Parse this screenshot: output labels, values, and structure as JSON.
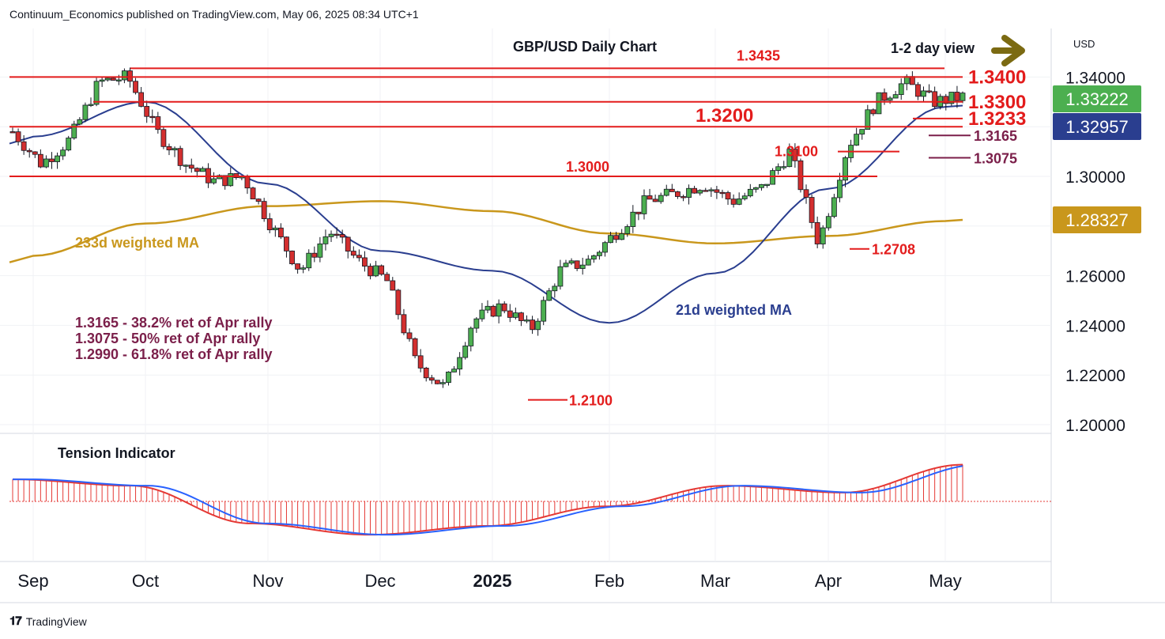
{
  "header": {
    "publisher": "Continuum_Economics published on TradingView.com, May 06, 2025 08:34 UTC+1"
  },
  "footer": {
    "brand": "TradingView",
    "logo_icon": "tradingview-logo-icon"
  },
  "chart_data": [
    {
      "type": "candlestick",
      "title": "GBP/USD Daily Chart",
      "subtitle": "1-2 day view",
      "currency": "USD",
      "x_labels": [
        "Sep",
        "Oct",
        "Nov",
        "Dec",
        "2025",
        "Feb",
        "Mar",
        "Apr",
        "May"
      ],
      "y_ticks": [
        "1.34000",
        "1.30000",
        "1.26000",
        "1.24000",
        "1.22000",
        "1.20000"
      ],
      "ylim": [
        1.2,
        1.355
      ],
      "price_badges": [
        {
          "value": "1.33222",
          "color": "#4caf50"
        },
        {
          "value": "1.32957",
          "color": "#2a3e8f"
        },
        {
          "value": "1.28327",
          "color": "#c9971c"
        }
      ],
      "levels": [
        {
          "label": "1.3435",
          "value": 1.3435
        },
        {
          "label": "1.3400",
          "value": 1.34
        },
        {
          "label": "1.3300",
          "value": 1.33
        },
        {
          "label": "1.3233",
          "value": 1.3233
        },
        {
          "label": "1.3200",
          "value": 1.32
        },
        {
          "label": "1.3165",
          "value": 1.3165
        },
        {
          "label": "1.3100",
          "value": 1.31
        },
        {
          "label": "1.3075",
          "value": 1.3075
        },
        {
          "label": "1.3000",
          "value": 1.3
        },
        {
          "label": "1.2708",
          "value": 1.2708
        },
        {
          "label": "1.2100",
          "value": 1.21
        }
      ],
      "series": [
        {
          "name": "233d weighted MA",
          "color": "#c9971c",
          "x": [
            "Sep",
            "Oct",
            "Nov",
            "Dec",
            "2025",
            "Feb",
            "Mar",
            "Apr",
            "May"
          ],
          "values": [
            1.268,
            1.281,
            1.288,
            1.29,
            1.286,
            1.277,
            1.273,
            1.276,
            1.282
          ]
        },
        {
          "name": "21d weighted MA",
          "color": "#2a3e8f",
          "x": [
            "Sep",
            "Oct",
            "Nov",
            "Dec",
            "2025",
            "Feb",
            "Mar",
            "Apr",
            "May"
          ],
          "values": [
            1.316,
            1.33,
            1.297,
            1.27,
            1.262,
            1.241,
            1.261,
            1.295,
            1.328
          ]
        }
      ],
      "candle_colors": {
        "up": "#4caf50",
        "down": "#d32f2f"
      },
      "annotations": [
        "1.3165 - 38.2% ret of Apr rally",
        "1.3075 - 50% ret of Apr rally",
        "1.2990 - 61.8% ret of Apr rally"
      ],
      "arrow_icon": "arrow-right-icon"
    },
    {
      "type": "histogram",
      "title": "Tension Indicator",
      "colors": {
        "histogram": "#e53935",
        "signal": "#2962ff"
      },
      "x": [
        "Sep",
        "Oct",
        "Nov",
        "Dec",
        "2025",
        "Feb",
        "Mar",
        "Apr",
        "May"
      ],
      "values": [
        0.45,
        0.32,
        -0.45,
        -0.68,
        -0.5,
        -0.1,
        0.32,
        0.18,
        0.75
      ],
      "ylim": [
        -1,
        1
      ]
    }
  ]
}
